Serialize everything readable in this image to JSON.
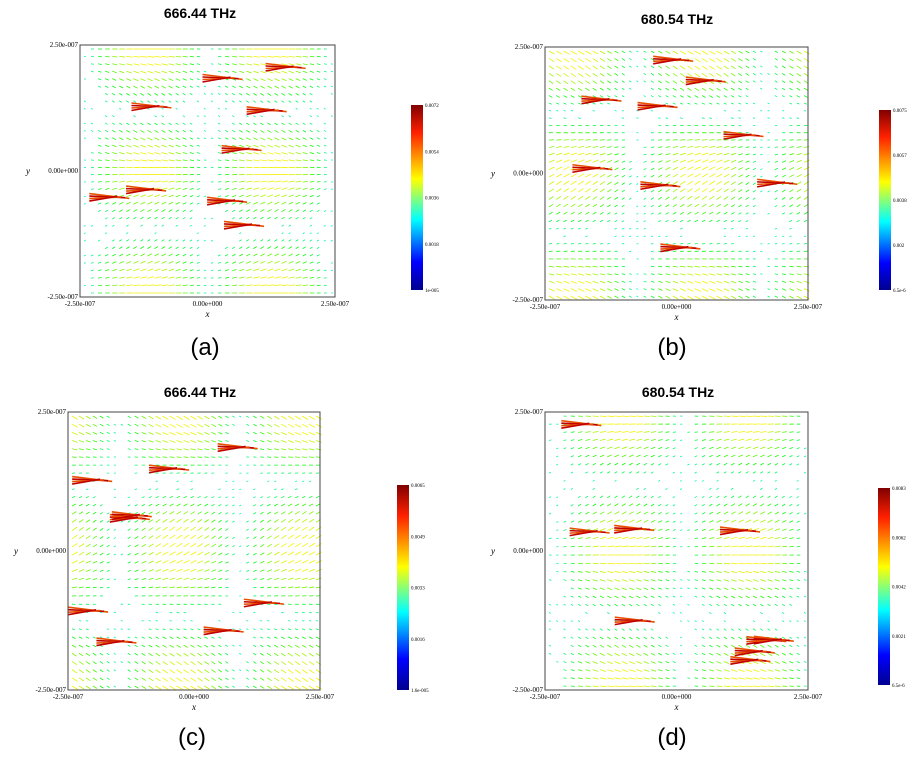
{
  "panels": [
    {
      "title": "666.44 THz",
      "caption": "(a)",
      "x_label": "x",
      "y_label": "y",
      "x_ticks": [
        "-2.50e-007",
        "0.00e+000",
        "2.50e-007"
      ],
      "y_ticks": [
        "2.50e-007",
        "0.00e+000",
        "-2.50e-007"
      ],
      "colorbar_ticks": [
        "0.0072",
        "0.0054",
        "0.0036",
        "0.0018",
        "1e-005"
      ]
    },
    {
      "title": "680.54 THz",
      "caption": "(b)",
      "x_label": "x",
      "y_label": "y",
      "x_ticks": [
        "-2.50e-007",
        "0.00e+000",
        "2.50e-007"
      ],
      "y_ticks": [
        "2.50e-007",
        "0.00e+000",
        "-2.50e-007"
      ],
      "colorbar_ticks": [
        "0.0075",
        "0.0057",
        "0.0038",
        "0.002",
        "6.5e-6"
      ]
    },
    {
      "title": "666.44 THz",
      "caption": "(c)",
      "x_label": "x",
      "y_label": "y",
      "x_ticks": [
        "-2.50e-007",
        "0.00e+000",
        "2.50e-007"
      ],
      "y_ticks": [
        "2.50e-007",
        "0.00e+000",
        "-2.50e-007"
      ],
      "colorbar_ticks": [
        "0.0065",
        "0.0049",
        "0.0033",
        "0.0016",
        "1.6e-005"
      ]
    },
    {
      "title": "680.54 THz",
      "caption": "(d)",
      "x_label": "x",
      "y_label": "y",
      "x_ticks": [
        "-2.50e-007",
        "0.00e+000",
        "2.50e-007"
      ],
      "y_ticks": [
        "2.50e-007",
        "0.00e+000",
        "-2.50e-007"
      ],
      "colorbar_ticks": [
        "0.0083",
        "0.0062",
        "0.0042",
        "0.0021",
        "6.5e-6"
      ]
    }
  ]
}
